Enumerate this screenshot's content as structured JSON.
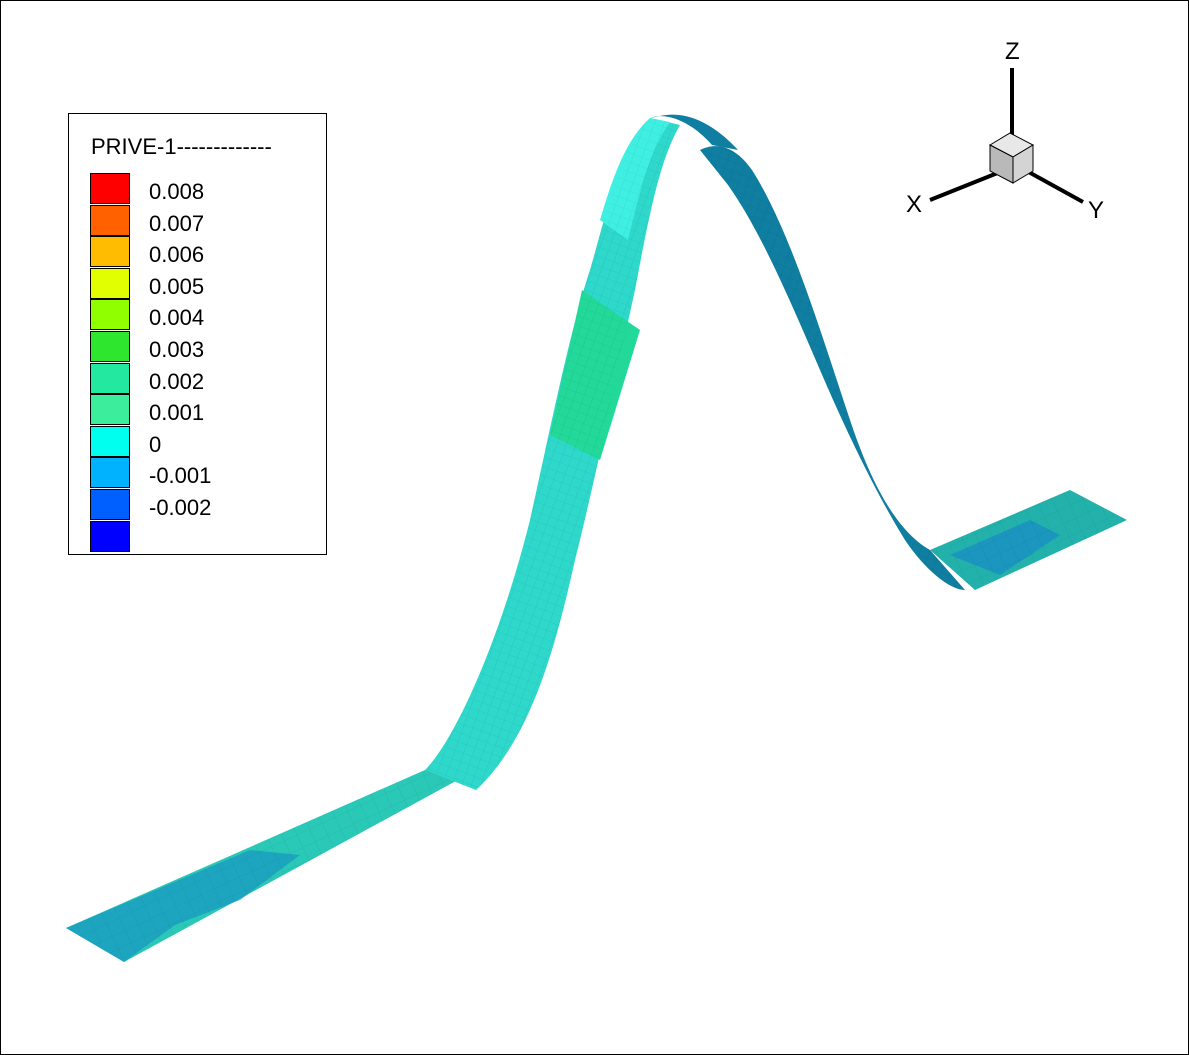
{
  "legend": {
    "title": "PRIVE-1-------------",
    "levels": [
      {
        "label": "0.008",
        "color": "#ff0000"
      },
      {
        "label": "0.007",
        "color": "#ff6000"
      },
      {
        "label": "0.006",
        "color": "#ffbc00"
      },
      {
        "label": "0.005",
        "color": "#e2ff00"
      },
      {
        "label": "0.004",
        "color": "#90ff00"
      },
      {
        "label": "0.003",
        "color": "#2ee62e"
      },
      {
        "label": "0.002",
        "color": "#22e8a0"
      },
      {
        "label": "0.001",
        "color": "#3cee9c"
      },
      {
        "label": "0",
        "color": "#00ffee"
      },
      {
        "label": "-0.001",
        "color": "#00b2ff"
      },
      {
        "label": "-0.002",
        "color": "#0060ff"
      },
      {
        "label": "",
        "color": "#0000ff"
      }
    ]
  },
  "axes": {
    "z": "Z",
    "x": "X",
    "y": "Y"
  },
  "colors": {
    "surface_light": "#2de0cf",
    "surface_mid": "#1fc3b7",
    "surface_green": "#22d999",
    "surface_dark": "#0f7ea1",
    "surface_blue": "#1f8fc4"
  }
}
